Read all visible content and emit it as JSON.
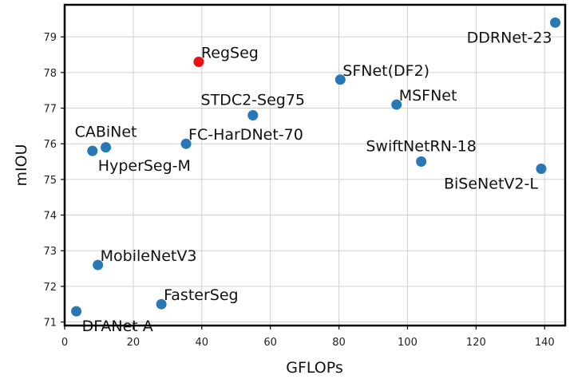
{
  "chart_data": {
    "type": "scatter",
    "title": "",
    "xlabel": "GFLOPs",
    "ylabel": "mIOU",
    "xlim": [
      0,
      146
    ],
    "ylim": [
      70.9,
      79.9
    ],
    "xticks": [
      0,
      20,
      40,
      60,
      80,
      100,
      120,
      140
    ],
    "yticks": [
      71,
      72,
      73,
      74,
      75,
      76,
      77,
      78,
      79
    ],
    "grid": true,
    "colors": {
      "default": "#2878b5",
      "highlight": "#ee1111"
    },
    "points": [
      {
        "name": "DDRNet-23",
        "x": 143.1,
        "y": 79.4,
        "highlight": false,
        "label_pos": "left-below"
      },
      {
        "name": "RegSeg",
        "x": 39.1,
        "y": 78.3,
        "highlight": true,
        "label_pos": "right-above"
      },
      {
        "name": "SFNet(DF2)",
        "x": 80.4,
        "y": 77.8,
        "highlight": false,
        "label_pos": "right-above"
      },
      {
        "name": "MSFNet",
        "x": 96.8,
        "y": 77.1,
        "highlight": false,
        "label_pos": "right-above"
      },
      {
        "name": "STDC2-Seg75",
        "x": 54.9,
        "y": 76.8,
        "highlight": false,
        "label_pos": "center-above"
      },
      {
        "name": "FC-HarDNet-70",
        "x": 35.4,
        "y": 76.0,
        "highlight": false,
        "label_pos": "right-above"
      },
      {
        "name": "CABiNet",
        "x": 12.0,
        "y": 75.9,
        "highlight": false,
        "label_pos": "center-above"
      },
      {
        "name": "HyperSeg-M",
        "x": 8.1,
        "y": 75.8,
        "highlight": false,
        "label_pos": "right-below"
      },
      {
        "name": "SwiftNetRN-18",
        "x": 104.0,
        "y": 75.5,
        "highlight": false,
        "label_pos": "center-above"
      },
      {
        "name": "BiSeNetV2-L",
        "x": 139.0,
        "y": 75.3,
        "highlight": false,
        "label_pos": "left-below"
      },
      {
        "name": "MobileNetV3",
        "x": 9.7,
        "y": 72.6,
        "highlight": false,
        "label_pos": "right-above"
      },
      {
        "name": "FasterSeg",
        "x": 28.2,
        "y": 71.5,
        "highlight": false,
        "label_pos": "right-above"
      },
      {
        "name": "DFANet A",
        "x": 3.4,
        "y": 71.3,
        "highlight": false,
        "label_pos": "right-below"
      }
    ]
  }
}
